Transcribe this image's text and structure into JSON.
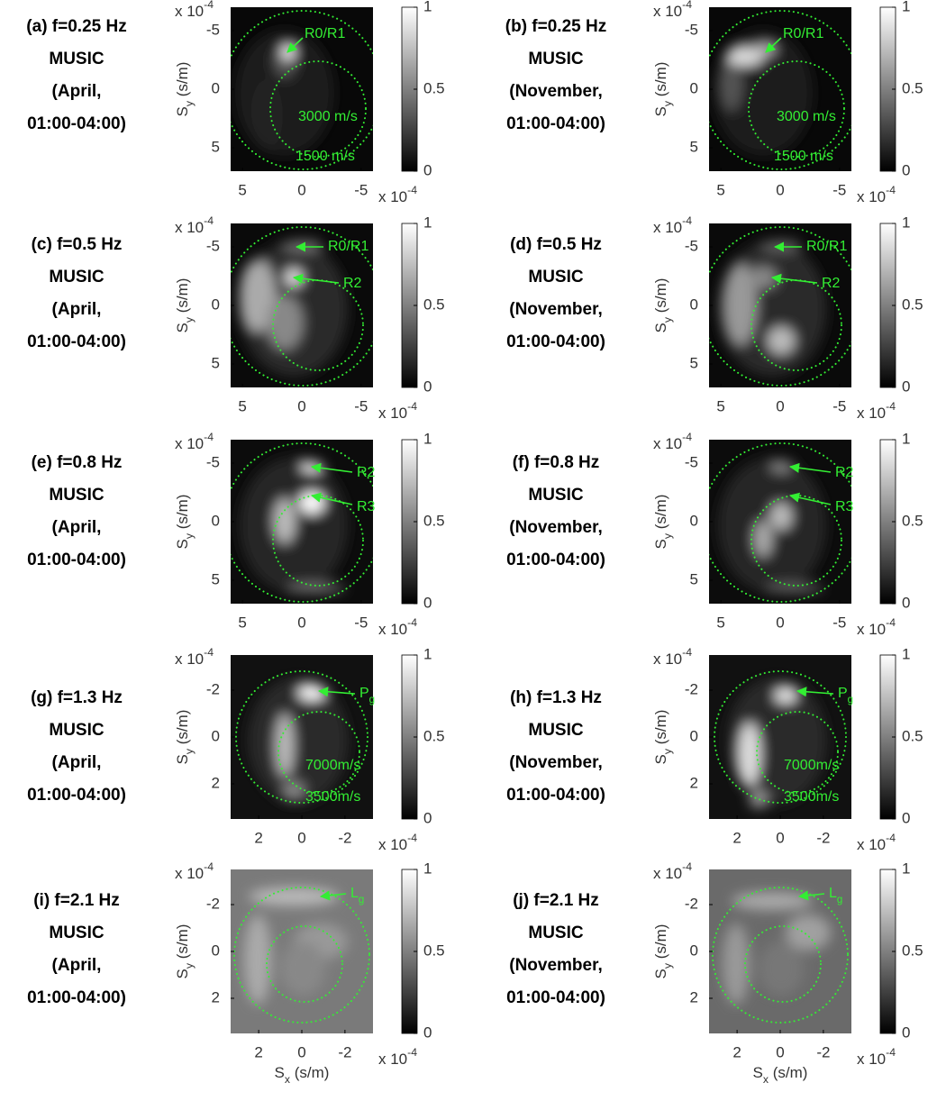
{
  "chart_data": [
    {
      "type": "heatmap",
      "title": [
        "(a) f=0.25 Hz",
        "MUSIC",
        "(April,",
        "01:00-04:00)"
      ],
      "ylabel": [
        "S",
        "y",
        " (s/m)"
      ],
      "axis_exponent": [
        "x 10",
        "-4"
      ],
      "xlim": [
        6,
        -6
      ],
      "ylim": [
        -7,
        7
      ],
      "xticks": [
        5,
        0,
        -5
      ],
      "yticks": [
        -5,
        0,
        5
      ],
      "colorbar": {
        "lim": [
          0,
          1
        ],
        "ticks": [
          0,
          0.5,
          1
        ]
      },
      "annotations": [
        {
          "text": "R0/R1"
        },
        {
          "text": "3000 m/s"
        },
        {
          "text": "1500 m/s"
        }
      ]
    },
    {
      "type": "heatmap",
      "title": [
        "(b) f=0.25 Hz",
        "MUSIC",
        "(November,",
        "01:00-04:00)"
      ],
      "ylabel": [
        "S",
        "y",
        " (s/m)"
      ],
      "axis_exponent": [
        "x 10",
        "-4"
      ],
      "xlim": [
        6,
        -6
      ],
      "ylim": [
        -7,
        7
      ],
      "xticks": [
        5,
        0,
        -5
      ],
      "yticks": [
        -5,
        0,
        5
      ],
      "colorbar": {
        "lim": [
          0,
          1
        ],
        "ticks": [
          0,
          0.5,
          1
        ]
      },
      "annotations": [
        {
          "text": "R0/R1"
        },
        {
          "text": "3000 m/s"
        },
        {
          "text": "1500 m/s"
        }
      ]
    },
    {
      "type": "heatmap",
      "title": [
        "(c) f=0.5 Hz",
        "MUSIC",
        "(April,",
        "01:00-04:00)"
      ],
      "ylabel": [
        "S",
        "y",
        " (s/m)"
      ],
      "axis_exponent": [
        "x 10",
        "-4"
      ],
      "xlim": [
        6,
        -6
      ],
      "ylim": [
        -7,
        7
      ],
      "xticks": [
        5,
        0,
        -5
      ],
      "yticks": [
        -5,
        0,
        5
      ],
      "colorbar": {
        "lim": [
          0,
          1
        ],
        "ticks": [
          0,
          0.5,
          1
        ]
      },
      "annotations": [
        {
          "text": "R0/R1"
        },
        {
          "text": "R2"
        }
      ]
    },
    {
      "type": "heatmap",
      "title": [
        "(d) f=0.5 Hz",
        "MUSIC",
        "(November,",
        "01:00-04:00)"
      ],
      "ylabel": [
        "S",
        "y",
        " (s/m)"
      ],
      "axis_exponent": [
        "x 10",
        "-4"
      ],
      "xlim": [
        6,
        -6
      ],
      "ylim": [
        -7,
        7
      ],
      "xticks": [
        5,
        0,
        -5
      ],
      "yticks": [
        -5,
        0,
        5
      ],
      "colorbar": {
        "lim": [
          0,
          1
        ],
        "ticks": [
          0,
          0.5,
          1
        ]
      },
      "annotations": [
        {
          "text": "R0/R1"
        },
        {
          "text": "R2"
        }
      ]
    },
    {
      "type": "heatmap",
      "title": [
        "(e) f=0.8 Hz",
        "MUSIC",
        "(April,",
        "01:00-04:00)"
      ],
      "ylabel": [
        "S",
        "y",
        " (s/m)"
      ],
      "axis_exponent": [
        "x 10",
        "-4"
      ],
      "xlim": [
        6,
        -6
      ],
      "ylim": [
        -7,
        7
      ],
      "xticks": [
        5,
        0,
        -5
      ],
      "yticks": [
        -5,
        0,
        5
      ],
      "colorbar": {
        "lim": [
          0,
          1
        ],
        "ticks": [
          0,
          0.5,
          1
        ]
      },
      "annotations": [
        {
          "text": "R2"
        },
        {
          "text": "R3"
        }
      ]
    },
    {
      "type": "heatmap",
      "title": [
        "(f) f=0.8 Hz",
        "MUSIC",
        "(November,",
        "01:00-04:00)"
      ],
      "ylabel": [
        "S",
        "y",
        " (s/m)"
      ],
      "axis_exponent": [
        "x 10",
        "-4"
      ],
      "xlim": [
        6,
        -6
      ],
      "ylim": [
        -7,
        7
      ],
      "xticks": [
        5,
        0,
        -5
      ],
      "yticks": [
        -5,
        0,
        5
      ],
      "colorbar": {
        "lim": [
          0,
          1
        ],
        "ticks": [
          0,
          0.5,
          1
        ]
      },
      "annotations": [
        {
          "text": "R2"
        },
        {
          "text": "R3"
        }
      ]
    },
    {
      "type": "heatmap",
      "title": [
        "(g) f=1.3 Hz",
        "MUSIC",
        "(April,",
        "01:00-04:00)"
      ],
      "ylabel": [
        "S",
        "y",
        " (s/m)"
      ],
      "axis_exponent": [
        "x 10",
        "-4"
      ],
      "xlim": [
        3.3,
        -3.3
      ],
      "ylim": [
        -3.5,
        3.5
      ],
      "xticks": [
        2,
        0,
        -2
      ],
      "yticks": [
        -2,
        0,
        2
      ],
      "colorbar": {
        "lim": [
          0,
          1
        ],
        "ticks": [
          0,
          0.5,
          1
        ]
      },
      "annotations": [
        {
          "text": [
            "P",
            "g"
          ]
        },
        {
          "text": "7000m/s"
        },
        {
          "text": "3500m/s"
        }
      ]
    },
    {
      "type": "heatmap",
      "title": [
        "(h) f=1.3 Hz",
        "MUSIC",
        "(November,",
        "01:00-04:00)"
      ],
      "ylabel": [
        "S",
        "y",
        " (s/m)"
      ],
      "axis_exponent": [
        "x 10",
        "-4"
      ],
      "xlim": [
        3.3,
        -3.3
      ],
      "ylim": [
        -3.5,
        3.5
      ],
      "xticks": [
        2,
        0,
        -2
      ],
      "yticks": [
        -2,
        0,
        2
      ],
      "colorbar": {
        "lim": [
          0,
          1
        ],
        "ticks": [
          0,
          0.5,
          1
        ]
      },
      "annotations": [
        {
          "text": [
            "P",
            "g"
          ]
        },
        {
          "text": "7000m/s"
        },
        {
          "text": "3500m/s"
        }
      ]
    },
    {
      "type": "heatmap",
      "title": [
        "(i) f=2.1 Hz",
        "MUSIC",
        "(April,",
        "01:00-04:00)"
      ],
      "ylabel": [
        "S",
        "y",
        " (s/m)"
      ],
      "xlabel": [
        "S",
        "x",
        " (s/m)"
      ],
      "axis_exponent": [
        "x 10",
        "-4"
      ],
      "xlim": [
        3.3,
        -3.3
      ],
      "ylim": [
        -3.5,
        3.5
      ],
      "xticks": [
        2,
        0,
        -2
      ],
      "yticks": [
        -2,
        0,
        2
      ],
      "colorbar": {
        "lim": [
          0,
          1
        ],
        "ticks": [
          0,
          0.5,
          1
        ]
      },
      "annotations": [
        {
          "text": [
            "L",
            "g"
          ]
        }
      ]
    },
    {
      "type": "heatmap",
      "title": [
        "(j) f=2.1 Hz",
        "MUSIC",
        "(November,",
        "01:00-04:00)"
      ],
      "ylabel": [
        "S",
        "y",
        " (s/m)"
      ],
      "xlabel": [
        "S",
        "x",
        " (s/m)"
      ],
      "axis_exponent": [
        "x 10",
        "-4"
      ],
      "xlim": [
        3.3,
        -3.3
      ],
      "ylim": [
        -3.5,
        3.5
      ],
      "xticks": [
        2,
        0,
        -2
      ],
      "yticks": [
        -2,
        0,
        2
      ],
      "colorbar": {
        "lim": [
          0,
          1
        ],
        "ticks": [
          0,
          0.5,
          1
        ]
      },
      "annotations": [
        {
          "text": [
            "L",
            "g"
          ]
        }
      ]
    }
  ]
}
